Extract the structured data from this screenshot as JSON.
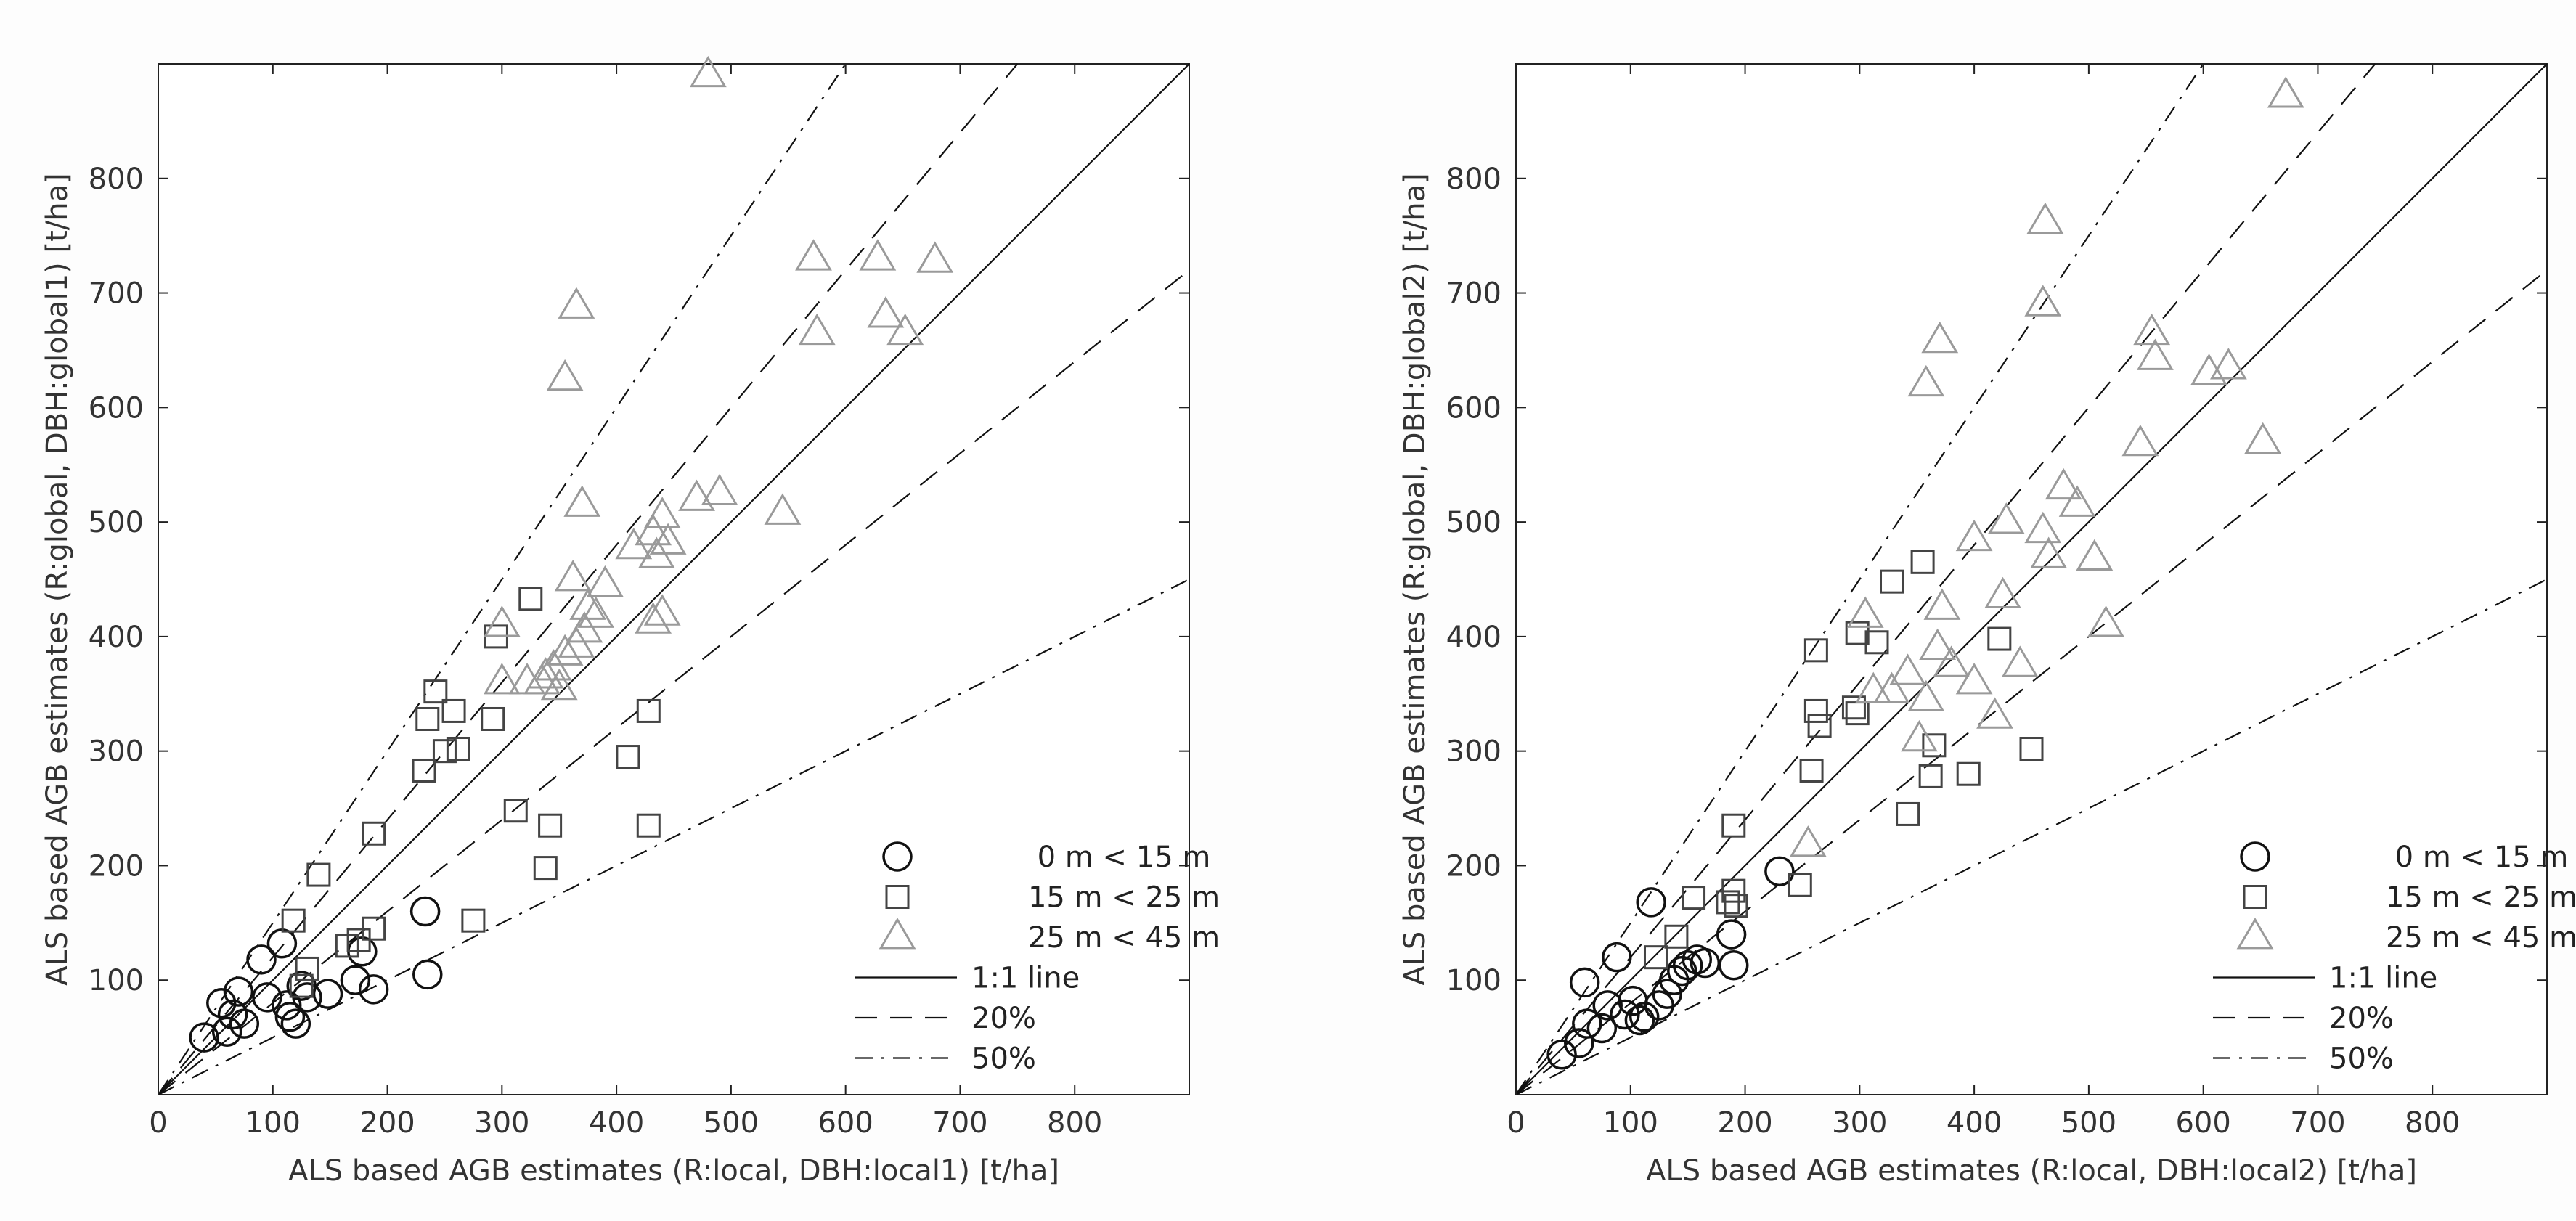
{
  "legend_labels": {
    "h1": "0 m < 15 m",
    "h2": "15 m < 25 m",
    "h3": "25 m < 45 m",
    "one_to_one": "1:1 line",
    "p20": "20%",
    "p50": "50%"
  },
  "colors": {
    "h1": "#111111",
    "h2": "#444444",
    "h3": "#9a9a9a",
    "lines": "#111111"
  },
  "chart_data": [
    {
      "type": "scatter",
      "xlabel": "ALS based AGB estimates (R:local, DBH:local1) [t/ha]",
      "ylabel": "ALS based AGB estimates (R:global, DBH:global1) [t/ha]",
      "xlim": [
        0,
        900
      ],
      "ylim": [
        0,
        900
      ],
      "xticks": [
        "0",
        "100",
        "200",
        "300",
        "400",
        "500",
        "600",
        "700",
        "800"
      ],
      "yticks": [
        "100",
        "200",
        "300",
        "400",
        "500",
        "600",
        "700",
        "800"
      ],
      "grid": false,
      "legend_position": "bottom-right",
      "reference_lines": [
        {
          "label": "1:1 line",
          "slope": 1.0,
          "style": "solid"
        },
        {
          "label": "20%",
          "slopes": [
            1.2,
            0.8
          ],
          "style": "dashed"
        },
        {
          "label": "50%",
          "slopes": [
            1.5,
            0.5
          ],
          "style": "dash-dot"
        }
      ],
      "series": [
        {
          "name": "0 m < 15 m",
          "marker": "circle",
          "points": [
            [
              40,
              50
            ],
            [
              55,
              80
            ],
            [
              60,
              55
            ],
            [
              65,
              70
            ],
            [
              70,
              90
            ],
            [
              75,
              62
            ],
            [
              90,
              118
            ],
            [
              95,
              85
            ],
            [
              108,
              132
            ],
            [
              112,
              78
            ],
            [
              115,
              68
            ],
            [
              120,
              62
            ],
            [
              125,
              95
            ],
            [
              130,
              85
            ],
            [
              148,
              88
            ],
            [
              172,
              100
            ],
            [
              178,
              125
            ],
            [
              188,
              92
            ],
            [
              233,
              160
            ],
            [
              235,
              105
            ]
          ]
        },
        {
          "name": "15 m < 25 m",
          "marker": "square",
          "points": [
            [
              118,
              152
            ],
            [
              140,
              192
            ],
            [
              130,
              110
            ],
            [
              125,
              95
            ],
            [
              165,
              130
            ],
            [
              175,
              135
            ],
            [
              188,
              145
            ],
            [
              188,
              228
            ],
            [
              232,
              283
            ],
            [
              235,
              328
            ],
            [
              242,
              352
            ],
            [
              250,
              300
            ],
            [
              258,
              335
            ],
            [
              262,
              302
            ],
            [
              275,
              152
            ],
            [
              292,
              328
            ],
            [
              295,
              400
            ],
            [
              312,
              248
            ],
            [
              325,
              433
            ],
            [
              338,
              198
            ],
            [
              342,
              235
            ],
            [
              410,
              295
            ],
            [
              428,
              335
            ],
            [
              428,
              235
            ]
          ]
        },
        {
          "name": "25 m < 45 m",
          "marker": "triangle",
          "points": [
            [
              480,
              890
            ],
            [
              572,
              730
            ],
            [
              575,
              665
            ],
            [
              628,
              730
            ],
            [
              635,
              680
            ],
            [
              652,
              665
            ],
            [
              678,
              728
            ],
            [
              365,
              688
            ],
            [
              355,
              625
            ],
            [
              370,
              515
            ],
            [
              470,
              520
            ],
            [
              490,
              525
            ],
            [
              545,
              508
            ],
            [
              440,
              505
            ],
            [
              432,
              490
            ],
            [
              435,
              470
            ],
            [
              445,
              482
            ],
            [
              415,
              478
            ],
            [
              390,
              445
            ],
            [
              375,
              425
            ],
            [
              382,
              418
            ],
            [
              362,
              450
            ],
            [
              355,
              385
            ],
            [
              350,
              355
            ],
            [
              345,
              372
            ],
            [
              338,
              365
            ],
            [
              335,
              360
            ],
            [
              322,
              360
            ],
            [
              300,
              410
            ],
            [
              300,
              360
            ],
            [
              440,
              420
            ],
            [
              432,
              413
            ],
            [
              365,
              392
            ],
            [
              372,
              405
            ]
          ]
        }
      ]
    },
    {
      "type": "scatter",
      "xlabel": "ALS based AGB estimates (R:local, DBH:local2) [t/ha]",
      "ylabel": "ALS based AGB estimates (R:global, DBH:global2) [t/ha]",
      "xlim": [
        0,
        900
      ],
      "ylim": [
        0,
        900
      ],
      "xticks": [
        "0",
        "100",
        "200",
        "300",
        "400",
        "500",
        "600",
        "700",
        "800"
      ],
      "yticks": [
        "100",
        "200",
        "300",
        "400",
        "500",
        "600",
        "700",
        "800"
      ],
      "grid": false,
      "legend_position": "bottom-right",
      "reference_lines": [
        {
          "label": "1:1 line",
          "slope": 1.0,
          "style": "solid"
        },
        {
          "label": "20%",
          "slopes": [
            1.2,
            0.8
          ],
          "style": "dashed"
        },
        {
          "label": "50%",
          "slopes": [
            1.5,
            0.5
          ],
          "style": "dash-dot"
        }
      ],
      "series": [
        {
          "name": "0 m < 15 m",
          "marker": "circle",
          "points": [
            [
              40,
              35
            ],
            [
              55,
              45
            ],
            [
              60,
              98
            ],
            [
              62,
              62
            ],
            [
              75,
              58
            ],
            [
              80,
              78
            ],
            [
              88,
              120
            ],
            [
              95,
              70
            ],
            [
              102,
              82
            ],
            [
              108,
              65
            ],
            [
              112,
              68
            ],
            [
              118,
              168
            ],
            [
              125,
              78
            ],
            [
              132,
              88
            ],
            [
              138,
              100
            ],
            [
              145,
              108
            ],
            [
              150,
              113
            ],
            [
              158,
              118
            ],
            [
              165,
              115
            ],
            [
              188,
              140
            ],
            [
              190,
              113
            ],
            [
              230,
              195
            ]
          ]
        },
        {
          "name": "15 m < 25 m",
          "marker": "square",
          "points": [
            [
              122,
              120
            ],
            [
              140,
              138
            ],
            [
              155,
              172
            ],
            [
              185,
              168
            ],
            [
              190,
              178
            ],
            [
              190,
              235
            ],
            [
              192,
              165
            ],
            [
              248,
              183
            ],
            [
              258,
              283
            ],
            [
              262,
              388
            ],
            [
              262,
              335
            ],
            [
              265,
              322
            ],
            [
              295,
              338
            ],
            [
              298,
              403
            ],
            [
              298,
              333
            ],
            [
              315,
              395
            ],
            [
              328,
              448
            ],
            [
              342,
              245
            ],
            [
              355,
              465
            ],
            [
              362,
              278
            ],
            [
              365,
              305
            ],
            [
              395,
              280
            ],
            [
              422,
              398
            ],
            [
              450,
              302
            ]
          ]
        },
        {
          "name": "25 m < 45 m",
          "marker": "triangle",
          "points": [
            [
              672,
              872
            ],
            [
              462,
              762
            ],
            [
              460,
              690
            ],
            [
              555,
              665
            ],
            [
              558,
              643
            ],
            [
              545,
              568
            ],
            [
              605,
              630
            ],
            [
              622,
              635
            ],
            [
              652,
              570
            ],
            [
              370,
              658
            ],
            [
              358,
              620
            ],
            [
              400,
              485
            ],
            [
              428,
              500
            ],
            [
              478,
              530
            ],
            [
              490,
              515
            ],
            [
              460,
              492
            ],
            [
              465,
              470
            ],
            [
              505,
              468
            ],
            [
              515,
              410
            ],
            [
              425,
              435
            ],
            [
              372,
              425
            ],
            [
              380,
              375
            ],
            [
              368,
              390
            ],
            [
              400,
              360
            ],
            [
              418,
              330
            ],
            [
              440,
              375
            ],
            [
              342,
              368
            ],
            [
              328,
              352
            ],
            [
              312,
              352
            ],
            [
              305,
              418
            ],
            [
              352,
              310
            ],
            [
              358,
              345
            ],
            [
              255,
              218
            ]
          ]
        }
      ]
    }
  ]
}
